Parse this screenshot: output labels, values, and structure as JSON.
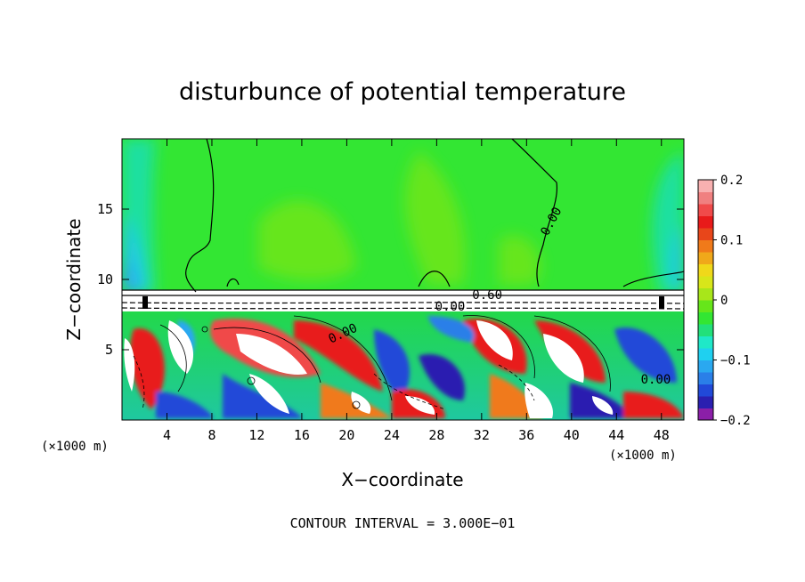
{
  "chart_data": {
    "type": "heatmap",
    "title": "disturbunce of potential temperature",
    "xlabel": "X−coordinate",
    "ylabel": "Z−coordinate",
    "x_unit_label": "(×1000 m)",
    "z_unit_label": "(×1000 m)",
    "x_ticks": [
      4,
      8,
      12,
      16,
      20,
      24,
      28,
      32,
      36,
      40,
      44,
      48
    ],
    "y_ticks": [
      5,
      10,
      15
    ],
    "xlim": [
      0,
      50
    ],
    "ylim": [
      0,
      20
    ],
    "colorbar": {
      "range": [
        -0.2,
        0.2
      ],
      "ticks": [
        {
          "value": 0.2,
          "label": "0.2"
        },
        {
          "value": 0.1,
          "label": "0.1"
        },
        {
          "value": 0.0,
          "label": "0"
        },
        {
          "value": -0.1,
          "label": "−0.1"
        },
        {
          "value": -0.2,
          "label": "−0.2"
        }
      ],
      "colors": [
        "#8b1fa8",
        "#2a1fb0",
        "#2149d8",
        "#2a7fe8",
        "#2aa8f0",
        "#1fd0f0",
        "#1fe8c8",
        "#22e07a",
        "#33e633",
        "#66e61a",
        "#a8e61a",
        "#d8e61a",
        "#f0d81a",
        "#f0a81a",
        "#f07a1a",
        "#e8461a",
        "#e81a1a",
        "#f04a4a",
        "#f08080",
        "#f8b0b0"
      ]
    },
    "contour_labels": [
      {
        "x": 38.5,
        "z": 14.0,
        "text": "0.00",
        "rotate": -62
      },
      {
        "x": 32.5,
        "z": 8.6,
        "text": "0.60",
        "rotate": 0
      },
      {
        "x": 29.2,
        "z": 7.8,
        "text": "0.00",
        "rotate": 0
      },
      {
        "x": 19.8,
        "z": 5.9,
        "text": "0.00",
        "rotate": -25
      },
      {
        "x": 47.5,
        "z": 2.6,
        "text": "0.00",
        "rotate": 0
      }
    ],
    "footer": "CONTOUR INTERVAL = 3.000E−01"
  }
}
